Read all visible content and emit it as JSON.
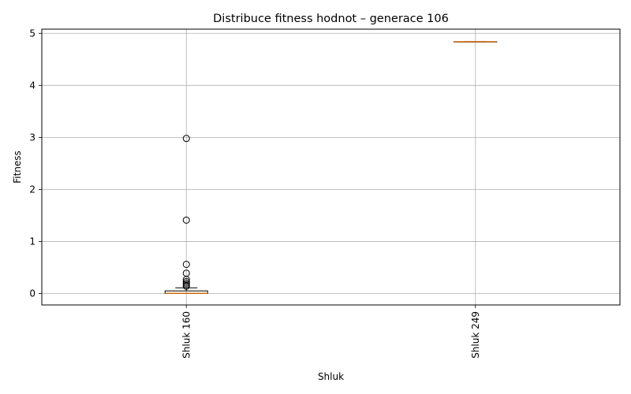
{
  "chart_data": {
    "type": "box",
    "title": "Distribuce fitness hodnot – generace 106",
    "xlabel": "Shluk",
    "ylabel": "Fitness",
    "ylim": [
      -0.22,
      5.08
    ],
    "yticks": [
      0,
      1,
      2,
      3,
      4,
      5
    ],
    "grid": true,
    "categories": [
      "Shluk 160",
      "Shluk 249"
    ],
    "boxes": [
      {
        "name": "Shluk 160",
        "whisker_low": 0.0,
        "q1": 0.0,
        "median": 0.005,
        "q3": 0.05,
        "whisker_high": 0.11,
        "outliers": [
          2.98,
          1.41,
          0.56,
          0.39,
          0.27,
          0.23,
          0.2,
          0.17,
          0.14
        ]
      },
      {
        "name": "Shluk 249",
        "whisker_low": 4.84,
        "q1": 4.84,
        "median": 4.84,
        "q3": 4.84,
        "whisker_high": 4.84,
        "outliers": []
      }
    ],
    "colors": {
      "box": "#000000",
      "median": "#ff7f0e",
      "grid": "#b0b0b0"
    }
  }
}
